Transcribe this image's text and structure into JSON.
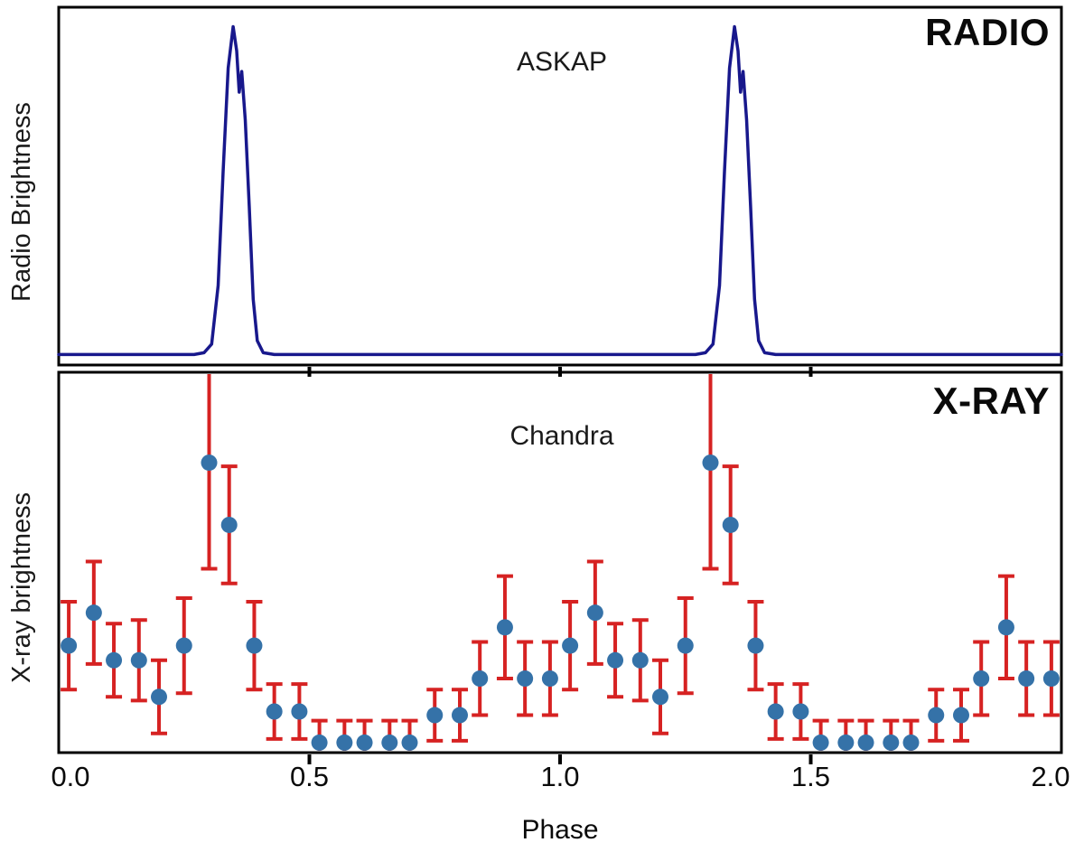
{
  "figure": {
    "xlabel": "Phase",
    "x_ticks": [
      {
        "label": "0.0",
        "value": 0.0
      },
      {
        "label": "0.5",
        "value": 0.5
      },
      {
        "label": "1.0",
        "value": 1.0
      },
      {
        "label": "1.5",
        "value": 1.5
      },
      {
        "label": "2.0",
        "value": 2.0
      }
    ],
    "axis_tick_values": [
      0.5,
      1.0,
      1.5
    ]
  },
  "panels": {
    "radio": {
      "label": "RADIO",
      "instrument": "ASKAP",
      "ylabel": "Radio Brightness",
      "line_color": "#18188c"
    },
    "xray": {
      "label": "X-RAY",
      "instrument": "Chandra",
      "ylabel": "X-ray brightness",
      "point_color": "#3572a8",
      "error_color": "#d62222"
    }
  },
  "chart_data": [
    {
      "type": "line",
      "title": "RADIO (ASKAP) pulse profile",
      "xlabel": "Phase",
      "ylabel": "Radio Brightness",
      "xlim": [
        0,
        2
      ],
      "ylim": [
        0,
        1
      ],
      "grid": false,
      "legend": "none",
      "x": [
        0.0,
        0.1,
        0.2,
        0.27,
        0.29,
        0.305,
        0.318,
        0.328,
        0.338,
        0.348,
        0.355,
        0.36,
        0.365,
        0.372,
        0.38,
        0.388,
        0.396,
        0.408,
        0.43,
        0.55,
        0.7,
        0.85,
        1.0,
        1.1,
        1.2,
        1.27,
        1.29,
        1.305,
        1.318,
        1.328,
        1.338,
        1.348,
        1.355,
        1.36,
        1.365,
        1.372,
        1.38,
        1.388,
        1.396,
        1.408,
        1.43,
        1.55,
        1.7,
        1.85,
        2.0
      ],
      "y": [
        0.02,
        0.02,
        0.02,
        0.02,
        0.025,
        0.05,
        0.22,
        0.55,
        0.85,
        0.97,
        0.9,
        0.78,
        0.84,
        0.7,
        0.45,
        0.18,
        0.06,
        0.025,
        0.02,
        0.02,
        0.02,
        0.02,
        0.02,
        0.02,
        0.02,
        0.02,
        0.025,
        0.05,
        0.22,
        0.55,
        0.85,
        0.97,
        0.9,
        0.78,
        0.84,
        0.7,
        0.45,
        0.18,
        0.06,
        0.025,
        0.02,
        0.02,
        0.02,
        0.02,
        0.02
      ],
      "notes": "Sharp radio pulse near phase 0.35 with small secondary notch on the falling edge; repeats each rotation period."
    },
    {
      "type": "scatter",
      "title": "X-RAY (Chandra) light curve with error bars",
      "xlabel": "Phase",
      "ylabel": "X-ray brightness",
      "xlim": [
        0,
        2
      ],
      "ylim": [
        0,
        1
      ],
      "grid": false,
      "legend": "none",
      "x": [
        0.02,
        0.07,
        0.11,
        0.16,
        0.2,
        0.25,
        0.3,
        0.34,
        0.39,
        0.43,
        0.48,
        0.52,
        0.57,
        0.61,
        0.66,
        0.7,
        0.75,
        0.8,
        0.84,
        0.89,
        0.93,
        0.98,
        1.02,
        1.07,
        1.11,
        1.16,
        1.2,
        1.25,
        1.3,
        1.34,
        1.39,
        1.43,
        1.48,
        1.52,
        1.57,
        1.61,
        1.66,
        1.7,
        1.75,
        1.8,
        1.84,
        1.89,
        1.93,
        1.98
      ],
      "y": [
        0.28,
        0.37,
        0.24,
        0.24,
        0.14,
        0.28,
        0.78,
        0.61,
        0.28,
        0.1,
        0.1,
        0.015,
        0.015,
        0.015,
        0.015,
        0.015,
        0.09,
        0.09,
        0.19,
        0.33,
        0.19,
        0.19,
        0.28,
        0.37,
        0.24,
        0.24,
        0.14,
        0.28,
        0.78,
        0.61,
        0.28,
        0.1,
        0.1,
        0.015,
        0.015,
        0.015,
        0.015,
        0.015,
        0.09,
        0.09,
        0.19,
        0.33,
        0.19,
        0.19
      ],
      "yerr": [
        0.12,
        0.14,
        0.1,
        0.11,
        0.1,
        0.13,
        0.29,
        0.16,
        0.12,
        0.075,
        0.075,
        0.06,
        0.06,
        0.06,
        0.06,
        0.06,
        0.07,
        0.07,
        0.1,
        0.14,
        0.1,
        0.1,
        0.12,
        0.14,
        0.1,
        0.11,
        0.1,
        0.13,
        0.29,
        0.16,
        0.12,
        0.075,
        0.075,
        0.06,
        0.06,
        0.06,
        0.06,
        0.06,
        0.07,
        0.07,
        0.1,
        0.14,
        0.1,
        0.1
      ],
      "notes": "X-ray peak coincides with the radio pulse phase (~0.3); error bar at the peak extends beyond the panel top."
    }
  ]
}
